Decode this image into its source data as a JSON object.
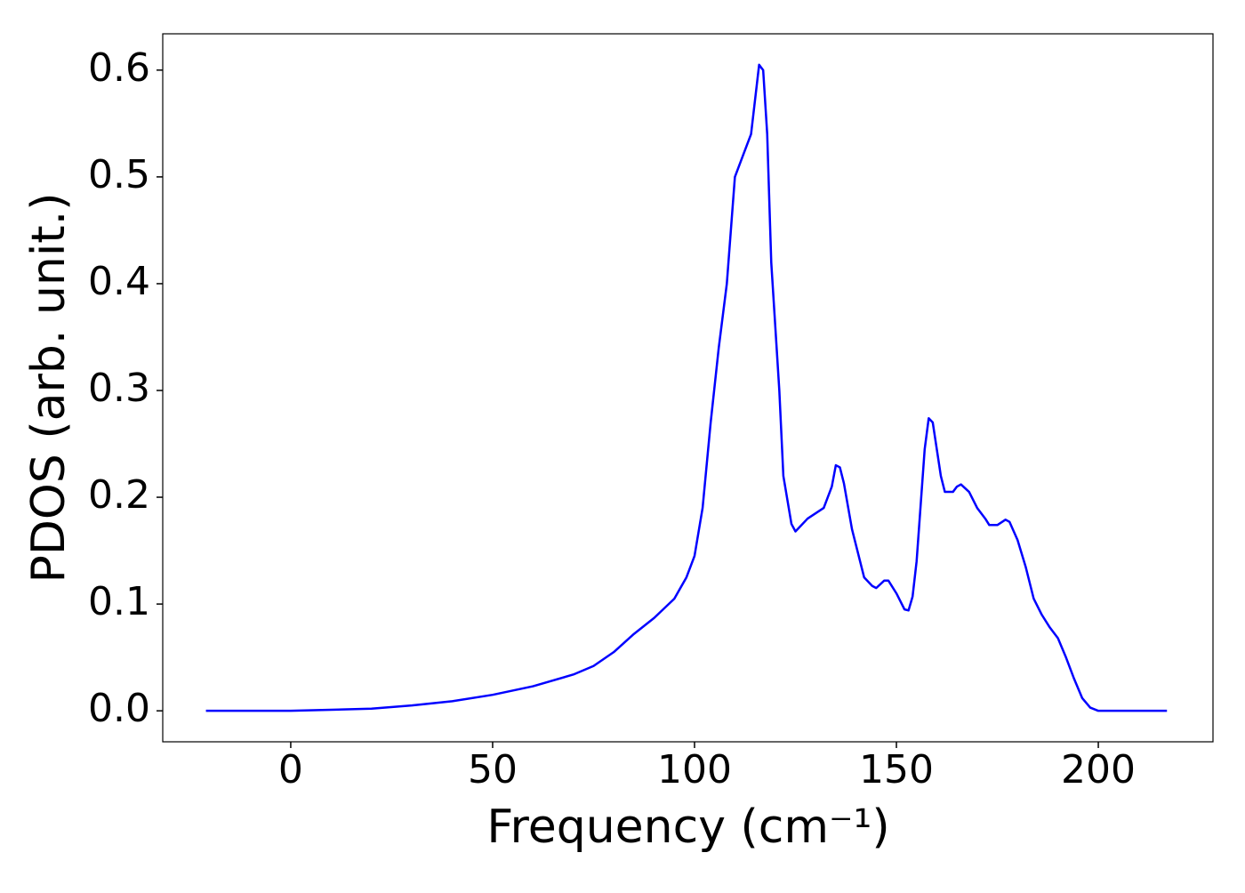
{
  "chart_data": {
    "type": "line",
    "xlabel": "Frequency (cm⁻¹)",
    "ylabel": "PDOS (arb. unit.)",
    "x": [
      -21,
      -10,
      0,
      10,
      20,
      30,
      40,
      50,
      60,
      70,
      75,
      80,
      85,
      90,
      95,
      98,
      100,
      102,
      104,
      106,
      108,
      110,
      112,
      114,
      116,
      117,
      118,
      119,
      121,
      122,
      124,
      125,
      128,
      130,
      132,
      134,
      135,
      136,
      137,
      139,
      141,
      142,
      144,
      145,
      147,
      148,
      150,
      152,
      153,
      154,
      155,
      157,
      158,
      159,
      161,
      162,
      164,
      165,
      166,
      168,
      170,
      172,
      173,
      175,
      177,
      178,
      180,
      182,
      184,
      186,
      188,
      190,
      192,
      194,
      196,
      198,
      200,
      217
    ],
    "series": [
      {
        "name": "PDOS",
        "color": "#0000ff",
        "values": [
          0,
          0,
          0,
          0.001,
          0.002,
          0.005,
          0.009,
          0.015,
          0.023,
          0.034,
          0.042,
          0.055,
          0.072,
          0.087,
          0.105,
          0.125,
          0.145,
          0.19,
          0.27,
          0.34,
          0.4,
          0.5,
          0.52,
          0.54,
          0.605,
          0.6,
          0.54,
          0.42,
          0.3,
          0.22,
          0.175,
          0.168,
          0.18,
          0.185,
          0.19,
          0.21,
          0.23,
          0.228,
          0.213,
          0.17,
          0.14,
          0.125,
          0.117,
          0.115,
          0.122,
          0.122,
          0.11,
          0.095,
          0.094,
          0.107,
          0.14,
          0.245,
          0.274,
          0.27,
          0.22,
          0.205,
          0.205,
          0.21,
          0.212,
          0.205,
          0.19,
          0.18,
          0.174,
          0.174,
          0.179,
          0.177,
          0.16,
          0.135,
          0.105,
          0.09,
          0.078,
          0.068,
          0.05,
          0.03,
          0.012,
          0.003,
          0,
          0
        ]
      }
    ],
    "xlim": [
      -31.7,
      228.4
    ],
    "ylim": [
      -0.029,
      0.634
    ],
    "xticks": [
      0,
      50,
      100,
      150,
      200
    ],
    "yticks": [
      {
        "value": 0,
        "label": "0.0"
      },
      0.1,
      0.2,
      0.3,
      0.4,
      0.5,
      0.6
    ],
    "grid": false
  }
}
